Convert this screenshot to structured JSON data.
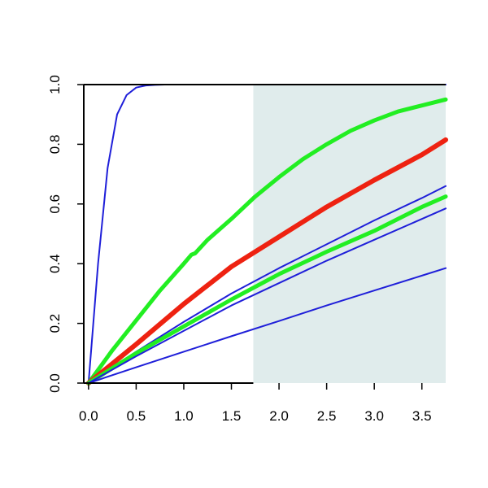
{
  "chart_data": {
    "type": "line",
    "title": "",
    "xlabel": "",
    "ylabel": "",
    "xlim": [
      -0.05,
      3.75
    ],
    "ylim": [
      0,
      1.0
    ],
    "x_ticks": [
      0.0,
      0.5,
      1.0,
      1.5,
      2.0,
      2.5,
      3.0,
      3.5
    ],
    "x_tick_labels": [
      "0.0",
      "0.5",
      "1.0",
      "1.5",
      "2.0",
      "2.5",
      "3.0",
      "3.5"
    ],
    "y_ticks": [
      0.0,
      0.2,
      0.4,
      0.6,
      0.8,
      1.0
    ],
    "y_tick_labels": [
      "0.0",
      "0.2",
      "0.4",
      "0.6",
      "0.8",
      "1.0"
    ],
    "grid": false,
    "legend": "none",
    "shaded_region": {
      "x_from": 1.73,
      "x_to": 3.75,
      "color": "#e0ecec"
    },
    "colors": {
      "blue": "#1f1fd9",
      "green": "#22ee22",
      "red": "#ee2211",
      "axis": "#000000"
    },
    "series": [
      {
        "color": "#1f1fd9",
        "width": 2,
        "x": [
          0,
          0.1,
          0.2,
          0.3,
          0.4,
          0.5,
          0.6,
          0.7,
          0.8,
          1.0,
          1.5,
          3.75
        ],
        "y": [
          0,
          0.4,
          0.72,
          0.9,
          0.965,
          0.99,
          0.997,
          0.999,
          1.0,
          1.0,
          1.0,
          1.0
        ]
      },
      {
        "color": "#22ee22",
        "width": 5,
        "x": [
          0,
          0.25,
          0.5,
          0.75,
          1.0,
          1.08,
          1.12,
          1.25,
          1.5,
          1.75,
          2.0,
          2.25,
          2.5,
          2.75,
          3.0,
          3.25,
          3.5,
          3.75
        ],
        "y": [
          0,
          0.11,
          0.21,
          0.31,
          0.4,
          0.43,
          0.435,
          0.48,
          0.55,
          0.625,
          0.69,
          0.75,
          0.8,
          0.845,
          0.88,
          0.91,
          0.93,
          0.95
        ]
      },
      {
        "color": "#ee2211",
        "width": 6,
        "x": [
          0,
          0.5,
          1.0,
          1.5,
          2.0,
          2.5,
          3.0,
          3.5,
          3.75
        ],
        "y": [
          0,
          0.13,
          0.265,
          0.39,
          0.49,
          0.59,
          0.68,
          0.765,
          0.815
        ]
      },
      {
        "color": "#1f1fd9",
        "width": 2,
        "x": [
          0,
          0.5,
          1.0,
          1.5,
          2.0,
          2.5,
          3.0,
          3.5,
          3.75
        ],
        "y": [
          0,
          0.105,
          0.205,
          0.3,
          0.385,
          0.465,
          0.545,
          0.62,
          0.66
        ]
      },
      {
        "color": "#22ee22",
        "width": 5,
        "x": [
          0,
          0.5,
          1.0,
          1.5,
          2.0,
          2.5,
          3.0,
          3.5,
          3.75
        ],
        "y": [
          0,
          0.1,
          0.19,
          0.28,
          0.365,
          0.44,
          0.51,
          0.59,
          0.625
        ]
      },
      {
        "color": "#1f1fd9",
        "width": 2,
        "x": [
          0,
          0.5,
          1.0,
          1.5,
          2.0,
          2.5,
          3.0,
          3.5,
          3.75
        ],
        "y": [
          0,
          0.09,
          0.175,
          0.26,
          0.335,
          0.41,
          0.48,
          0.55,
          0.585
        ]
      },
      {
        "color": "#1f1fd9",
        "width": 2,
        "x": [
          0,
          0.5,
          1.0,
          1.5,
          2.0,
          2.5,
          3.0,
          3.5,
          3.75
        ],
        "y": [
          0,
          0.053,
          0.105,
          0.157,
          0.208,
          0.26,
          0.31,
          0.36,
          0.385
        ]
      }
    ]
  }
}
